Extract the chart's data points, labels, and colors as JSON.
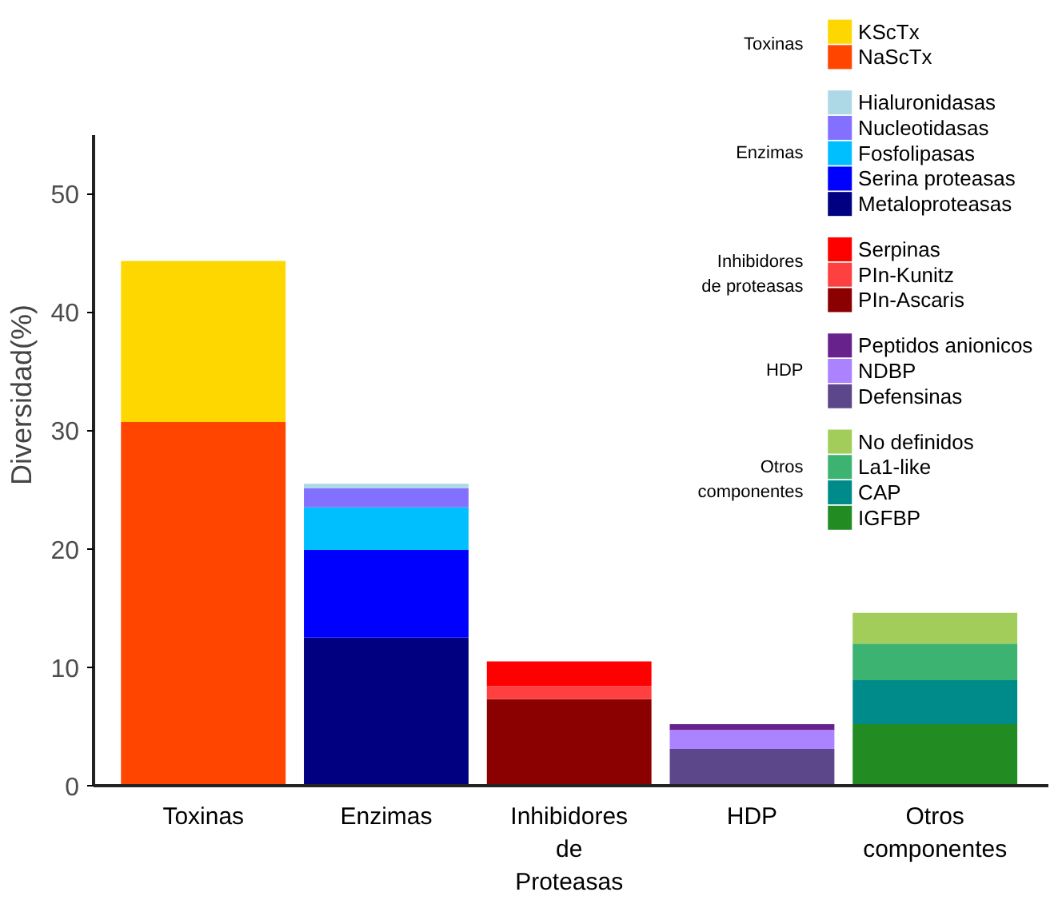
{
  "chart_data": {
    "type": "bar",
    "stacked": true,
    "ylabel": "Diversidad(%)",
    "categories": [
      "Toxinas",
      "Enzimas",
      "Inhibidores\nde\nProteasas",
      "HDP",
      "Otros\ncomponentes"
    ],
    "ylim": [
      0,
      55
    ],
    "yticks": [
      0,
      10,
      20,
      30,
      40,
      50
    ],
    "grid": false,
    "legend": "top right",
    "annotations": [
      "Toxinas",
      "Enzimas",
      "Inhibidores\nde proteasas",
      "HDP",
      "Otros\ncomponentes"
    ],
    "series": [
      {
        "name": "NaScTx",
        "color": "#ff4500",
        "values": [
          30.7,
          null,
          null,
          null,
          null
        ]
      },
      {
        "name": "KScTx",
        "color": "#ffd700",
        "values": [
          13.6,
          null,
          null,
          null,
          null
        ]
      },
      {
        "name": "Metaloproteasas",
        "color": "#000080",
        "values": [
          null,
          12.5,
          null,
          null,
          null
        ]
      },
      {
        "name": "Serina proteasas",
        "color": "#0000ff",
        "values": [
          null,
          7.4,
          null,
          null,
          null
        ]
      },
      {
        "name": "Fosfolipasas",
        "color": "#00bfff",
        "values": [
          null,
          3.6,
          null,
          null,
          null
        ]
      },
      {
        "name": "Nucleotidasas",
        "color": "#8470ff",
        "values": [
          null,
          1.6,
          null,
          null,
          null
        ]
      },
      {
        "name": "Hialuronidasas",
        "color": "#add8e6",
        "values": [
          null,
          0.4,
          null,
          null,
          null
        ]
      },
      {
        "name": "PIn-Ascaris",
        "color": "#8b0000",
        "values": [
          null,
          null,
          7.3,
          null,
          null
        ]
      },
      {
        "name": "PIn-Kunitz",
        "color": "#ff4040",
        "values": [
          null,
          null,
          1.1,
          null,
          null
        ]
      },
      {
        "name": "Serpinas",
        "color": "#ff0000",
        "values": [
          null,
          null,
          2.1,
          null,
          null
        ]
      },
      {
        "name": "Defensinas",
        "color": "#5d478b",
        "values": [
          null,
          null,
          null,
          3.1,
          null
        ]
      },
      {
        "name": "NDBP",
        "color": "#ab82ff",
        "values": [
          null,
          null,
          null,
          1.6,
          null
        ]
      },
      {
        "name": "Peptidos anionicos",
        "color": "#68228b",
        "values": [
          null,
          null,
          null,
          0.5,
          null
        ]
      },
      {
        "name": "IGFBP",
        "color": "#228b22",
        "values": [
          null,
          null,
          null,
          null,
          5.2
        ]
      },
      {
        "name": "CAP",
        "color": "#008b8b",
        "values": [
          null,
          null,
          null,
          null,
          3.7
        ]
      },
      {
        "name": "La1-like",
        "color": "#3cb371",
        "values": [
          null,
          null,
          null,
          null,
          3.1
        ]
      },
      {
        "name": "No definidos",
        "color": "#a2cd5a",
        "values": [
          null,
          null,
          null,
          null,
          2.6
        ]
      }
    ]
  }
}
